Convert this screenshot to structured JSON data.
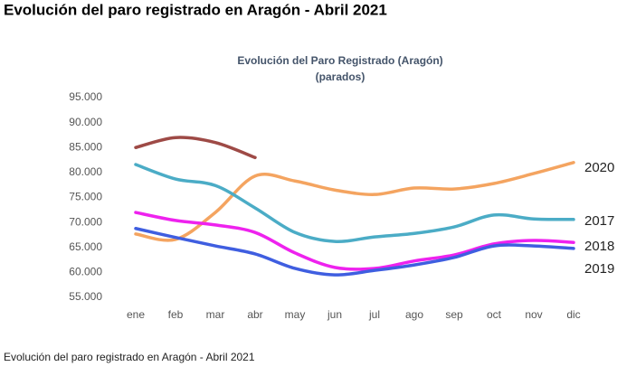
{
  "heading": "Evolución del paro registrado en Aragón - Abril 2021",
  "caption": "Evolución del paro registrado en Aragón - Abril 2021",
  "chart_data": {
    "type": "line",
    "title": "Evolución del Paro Registrado (Aragón)",
    "subtitle": "(parados)",
    "categories": [
      "ene",
      "feb",
      "mar",
      "abr",
      "may",
      "jun",
      "jul",
      "ago",
      "sep",
      "oct",
      "nov",
      "dic"
    ],
    "ylim": [
      55000,
      95000
    ],
    "yticks": [
      {
        "value": 55000,
        "label": "55.000"
      },
      {
        "value": 60000,
        "label": "60.000"
      },
      {
        "value": 65000,
        "label": "65.000"
      },
      {
        "value": 70000,
        "label": "70.000"
      },
      {
        "value": 75000,
        "label": "75.000"
      },
      {
        "value": 80000,
        "label": "80.000"
      },
      {
        "value": 85000,
        "label": "85.000"
      },
      {
        "value": 90000,
        "label": "90.000"
      },
      {
        "value": 95000,
        "label": "95.000"
      }
    ],
    "grid": false,
    "series": [
      {
        "color": "#9e4a46",
        "values": [
          85000,
          87000,
          86000,
          83000,
          null,
          null,
          null,
          null,
          null,
          null,
          null,
          null
        ]
      },
      {
        "name": "2020",
        "color": "#f4a460",
        "values": [
          67700,
          66600,
          72000,
          79300,
          78300,
          76500,
          75600,
          76900,
          76700,
          77800,
          79800,
          82000
        ]
      },
      {
        "name": "2017",
        "color": "#4bacc6",
        "values": [
          81600,
          78700,
          77400,
          72900,
          68000,
          66200,
          67100,
          67800,
          69100,
          71500,
          70700,
          70600
        ]
      },
      {
        "name": "2018",
        "color": "#ee22ee",
        "values": [
          72000,
          70400,
          69500,
          68000,
          63900,
          61000,
          60800,
          62300,
          63500,
          65700,
          66400,
          66000
        ]
      },
      {
        "name": "2019",
        "color": "#3f5ee0",
        "values": [
          68800,
          67000,
          65300,
          63700,
          60800,
          59500,
          60400,
          61500,
          63000,
          65300,
          65300,
          64800
        ]
      }
    ]
  }
}
